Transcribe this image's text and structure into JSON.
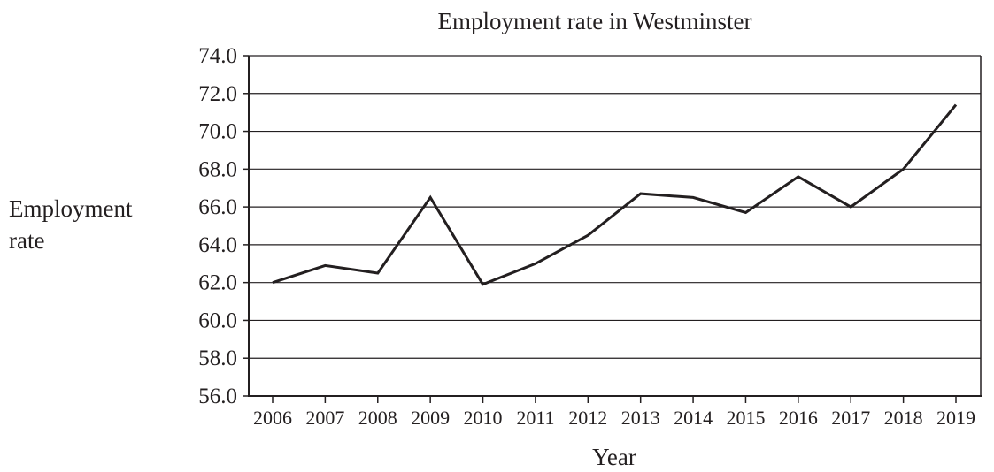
{
  "chart_data": {
    "type": "line",
    "title": "Employment rate in Westminster",
    "xlabel": "Year",
    "ylabel_lines": [
      "Employment",
      "rate"
    ],
    "ylim": [
      56.0,
      74.0
    ],
    "yticks": [
      "74.0",
      "72.0",
      "70.0",
      "68.0",
      "66.0",
      "64.0",
      "62.0",
      "60.0",
      "58.0",
      "56.0"
    ],
    "grid": true,
    "legend": "none",
    "line_color": "#231f20",
    "x": [
      "2006",
      "2007",
      "2008",
      "2009",
      "2010",
      "2011",
      "2012",
      "2013",
      "2014",
      "2015",
      "2016",
      "2017",
      "2018",
      "2019"
    ],
    "values": [
      62.0,
      62.9,
      62.5,
      66.5,
      61.9,
      63.0,
      64.5,
      66.7,
      66.5,
      65.7,
      67.6,
      66.0,
      68.0,
      71.4
    ]
  }
}
